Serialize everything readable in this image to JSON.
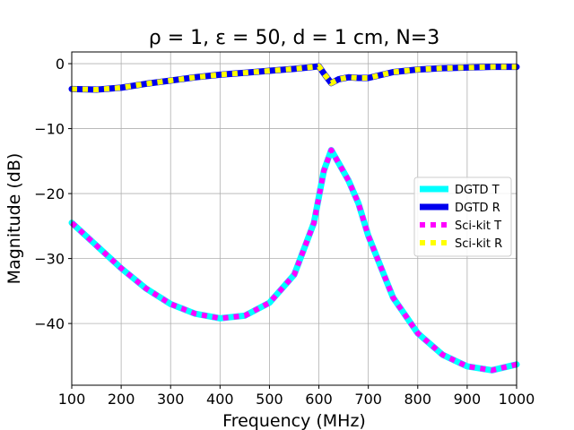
{
  "chart_data": {
    "type": "line",
    "title": "ρ = 1, ε = 50, d = 1 cm, N=3",
    "xlabel": "Frequency (MHz)",
    "ylabel": "Magnitude (dB)",
    "xlim": [
      100,
      1000
    ],
    "ylim": [
      -49.5,
      1.8
    ],
    "xticks": [
      100,
      200,
      300,
      400,
      500,
      600,
      700,
      800,
      900,
      1000
    ],
    "yticks": [
      0,
      -10,
      -20,
      -30,
      -40
    ],
    "xtick_labels": [
      "100",
      "200",
      "300",
      "400",
      "500",
      "600",
      "700",
      "800",
      "900",
      "1000"
    ],
    "ytick_labels": [
      "0",
      "−10",
      "−20",
      "−30",
      "−40"
    ],
    "grid": true,
    "legend_position": "center-right",
    "x": [
      100,
      150,
      200,
      250,
      300,
      350,
      400,
      450,
      500,
      550,
      590,
      600,
      610,
      625,
      640,
      660,
      680,
      700,
      750,
      800,
      850,
      900,
      950,
      1000
    ],
    "series": [
      {
        "name": "DGTD T",
        "color": "#00ffff",
        "style": "solid",
        "values": [
          -24.5,
          -28.0,
          -31.5,
          -34.6,
          -37.0,
          -38.5,
          -39.2,
          -38.8,
          -36.8,
          -32.5,
          -24.5,
          -20.5,
          -16.5,
          -13.3,
          -15.3,
          -18.0,
          -21.5,
          -26.5,
          -36.0,
          -41.5,
          -44.8,
          -46.6,
          -47.2,
          -46.3
        ]
      },
      {
        "name": "DGTD R",
        "color": "#0000ee",
        "style": "solid",
        "values": [
          -3.9,
          -4.0,
          -3.7,
          -3.1,
          -2.6,
          -2.1,
          -1.7,
          -1.4,
          -1.1,
          -0.8,
          -0.5,
          -0.4,
          -1.5,
          -3.0,
          -2.4,
          -2.1,
          -2.2,
          -2.2,
          -1.3,
          -0.9,
          -0.7,
          -0.6,
          -0.5,
          -0.5
        ]
      },
      {
        "name": "Sci-kit T",
        "color": "#ff00ff",
        "style": "dotted",
        "values": [
          -24.5,
          -28.0,
          -31.5,
          -34.6,
          -37.0,
          -38.5,
          -39.2,
          -38.8,
          -36.8,
          -32.5,
          -24.5,
          -20.5,
          -16.5,
          -13.3,
          -15.3,
          -18.0,
          -21.5,
          -26.5,
          -36.0,
          -41.5,
          -44.8,
          -46.6,
          -47.2,
          -46.3
        ]
      },
      {
        "name": "Sci-kit R",
        "color": "#ffff00",
        "style": "dotted",
        "values": [
          -3.9,
          -4.0,
          -3.7,
          -3.1,
          -2.6,
          -2.1,
          -1.7,
          -1.4,
          -1.1,
          -0.8,
          -0.5,
          -0.4,
          -1.5,
          -3.0,
          -2.4,
          -2.1,
          -2.2,
          -2.2,
          -1.3,
          -0.9,
          -0.7,
          -0.6,
          -0.5,
          -0.5
        ]
      }
    ]
  }
}
